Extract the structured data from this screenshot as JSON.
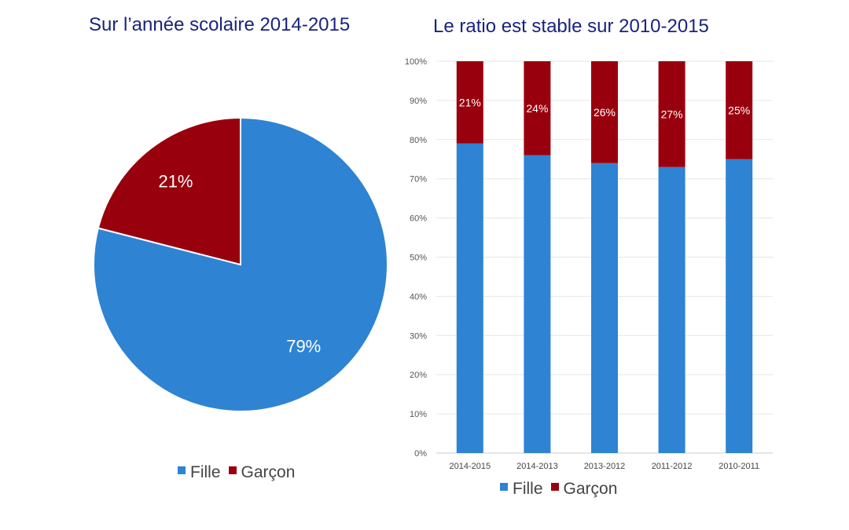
{
  "colors": {
    "fille": "#2e83d3",
    "garcon": "#99000d",
    "title": "#1a237e",
    "grid": "#e6e6e6",
    "axis_text": "#555555"
  },
  "chart_data": [
    {
      "type": "pie",
      "title": "Sur l’année scolaire 2014-2015",
      "slices": [
        {
          "label": "Fille",
          "value": 79,
          "display": "79%"
        },
        {
          "label": "Garçon",
          "value": 21,
          "display": "21%"
        }
      ],
      "legend": [
        "Fille",
        "Garçon"
      ],
      "legend_position": "bottom"
    },
    {
      "type": "bar",
      "stacked": true,
      "title": "Le ratio est stable sur 2010-2015",
      "categories": [
        "2014-2015",
        "2014-2013",
        "2013-2012",
        "2011-2012",
        "2010-2011"
      ],
      "series": [
        {
          "name": "Fille",
          "values": [
            79,
            76,
            74,
            73,
            75
          ]
        },
        {
          "name": "Garçon",
          "values": [
            21,
            24,
            26,
            27,
            25
          ],
          "labels": [
            "21%",
            "24%",
            "26%",
            "27%",
            "25%"
          ]
        }
      ],
      "yticks": [
        "0%",
        "10%",
        "20%",
        "30%",
        "40%",
        "50%",
        "60%",
        "70%",
        "80%",
        "90%",
        "100%"
      ],
      "ylim": [
        0,
        100
      ],
      "grid": true,
      "legend": [
        "Fille",
        "Garçon"
      ],
      "legend_position": "bottom"
    }
  ]
}
